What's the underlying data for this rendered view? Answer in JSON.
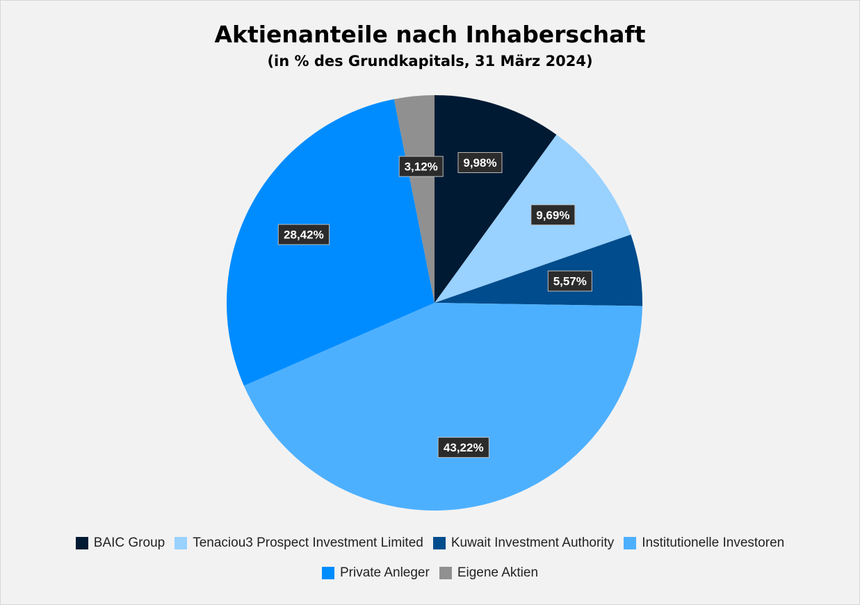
{
  "chart_data": {
    "type": "pie",
    "title": "Aktienanteile nach Inhaberschaft",
    "subtitle": "(in % des Grundkapitals, 31 März 2024)",
    "unit": "%",
    "legend_position": "bottom",
    "slices": [
      {
        "name": "BAIC Group",
        "value": 9.98,
        "label": "9,98%",
        "color": "#001a33"
      },
      {
        "name": "Tenaciou3 Prospect Investment Limited",
        "value": 9.69,
        "label": "9,69%",
        "color": "#99d1ff"
      },
      {
        "name": "Kuwait Investment Authority",
        "value": 5.57,
        "label": "5,57%",
        "color": "#004c8c"
      },
      {
        "name": "Institutionelle Investoren",
        "value": 43.22,
        "label": "43,22%",
        "color": "#4db0ff"
      },
      {
        "name": "Private Anleger",
        "value": 28.42,
        "label": "28,42%",
        "color": "#008cff"
      },
      {
        "name": "Eigene Aktien",
        "value": 3.12,
        "label": "3,12%",
        "color": "#909090"
      }
    ]
  }
}
